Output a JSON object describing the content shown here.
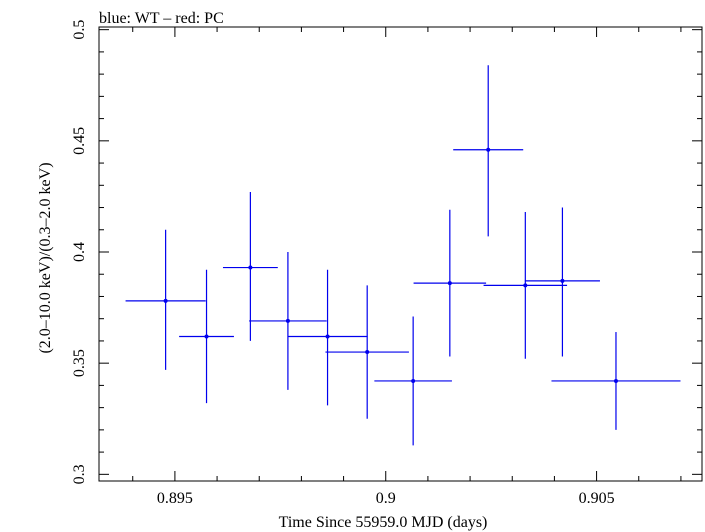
{
  "chart_data": {
    "type": "scatter",
    "title": "blue: WT – red: PC",
    "xlabel": "Time Since 55959.0 MJD (days)",
    "ylabel": "(2.0–10.0 keV)/(0.3–2.0 keV)",
    "xlim": [
      0.8932,
      0.9075
    ],
    "ylim": [
      0.297,
      0.5012
    ],
    "xticks": [
      {
        "value": 0.895,
        "label": "0.895"
      },
      {
        "value": 0.9,
        "label": "0.9"
      },
      {
        "value": 0.905,
        "label": "0.905"
      }
    ],
    "yticks": [
      {
        "value": 0.3,
        "label": "0.3"
      },
      {
        "value": 0.35,
        "label": "0.35"
      },
      {
        "value": 0.4,
        "label": "0.4"
      },
      {
        "value": 0.45,
        "label": "0.45"
      },
      {
        "value": 0.5,
        "label": "0.5"
      }
    ],
    "grid": false,
    "series": [
      {
        "color": "#0000ee",
        "points": [
          {
            "x": 0.89478,
            "xerr": 0.00095,
            "y": 0.378,
            "yerr_low": 0.031,
            "yerr_high": 0.032
          },
          {
            "x": 0.89575,
            "xerr": 0.00065,
            "y": 0.362,
            "yerr_low": 0.03,
            "yerr_high": 0.03
          },
          {
            "x": 0.89679,
            "xerr": 0.00065,
            "y": 0.393,
            "yerr_low": 0.033,
            "yerr_high": 0.034
          },
          {
            "x": 0.89768,
            "xerr": 0.00092,
            "y": 0.369,
            "yerr_low": 0.031,
            "yerr_high": 0.031
          },
          {
            "x": 0.89862,
            "xerr": 0.00095,
            "y": 0.362,
            "yerr_low": 0.031,
            "yerr_high": 0.03
          },
          {
            "x": 0.89956,
            "xerr": 0.00099,
            "y": 0.355,
            "yerr_low": 0.03,
            "yerr_high": 0.03
          },
          {
            "x": 0.90065,
            "xerr": 0.00092,
            "y": 0.342,
            "yerr_low": 0.029,
            "yerr_high": 0.029
          },
          {
            "x": 0.90152,
            "xerr": 0.00086,
            "y": 0.386,
            "yerr_low": 0.033,
            "yerr_high": 0.033
          },
          {
            "x": 0.90243,
            "xerr": 0.00083,
            "y": 0.446,
            "yerr_low": 0.039,
            "yerr_high": 0.038
          },
          {
            "x": 0.90331,
            "xerr": 0.00099,
            "y": 0.385,
            "yerr_low": 0.033,
            "yerr_high": 0.033
          },
          {
            "x": 0.90419,
            "xerr": 0.00089,
            "y": 0.387,
            "yerr_low": 0.034,
            "yerr_high": 0.033
          },
          {
            "x": 0.90546,
            "xerr": 0.00153,
            "y": 0.342,
            "yerr_low": 0.022,
            "yerr_high": 0.022
          }
        ]
      }
    ]
  }
}
